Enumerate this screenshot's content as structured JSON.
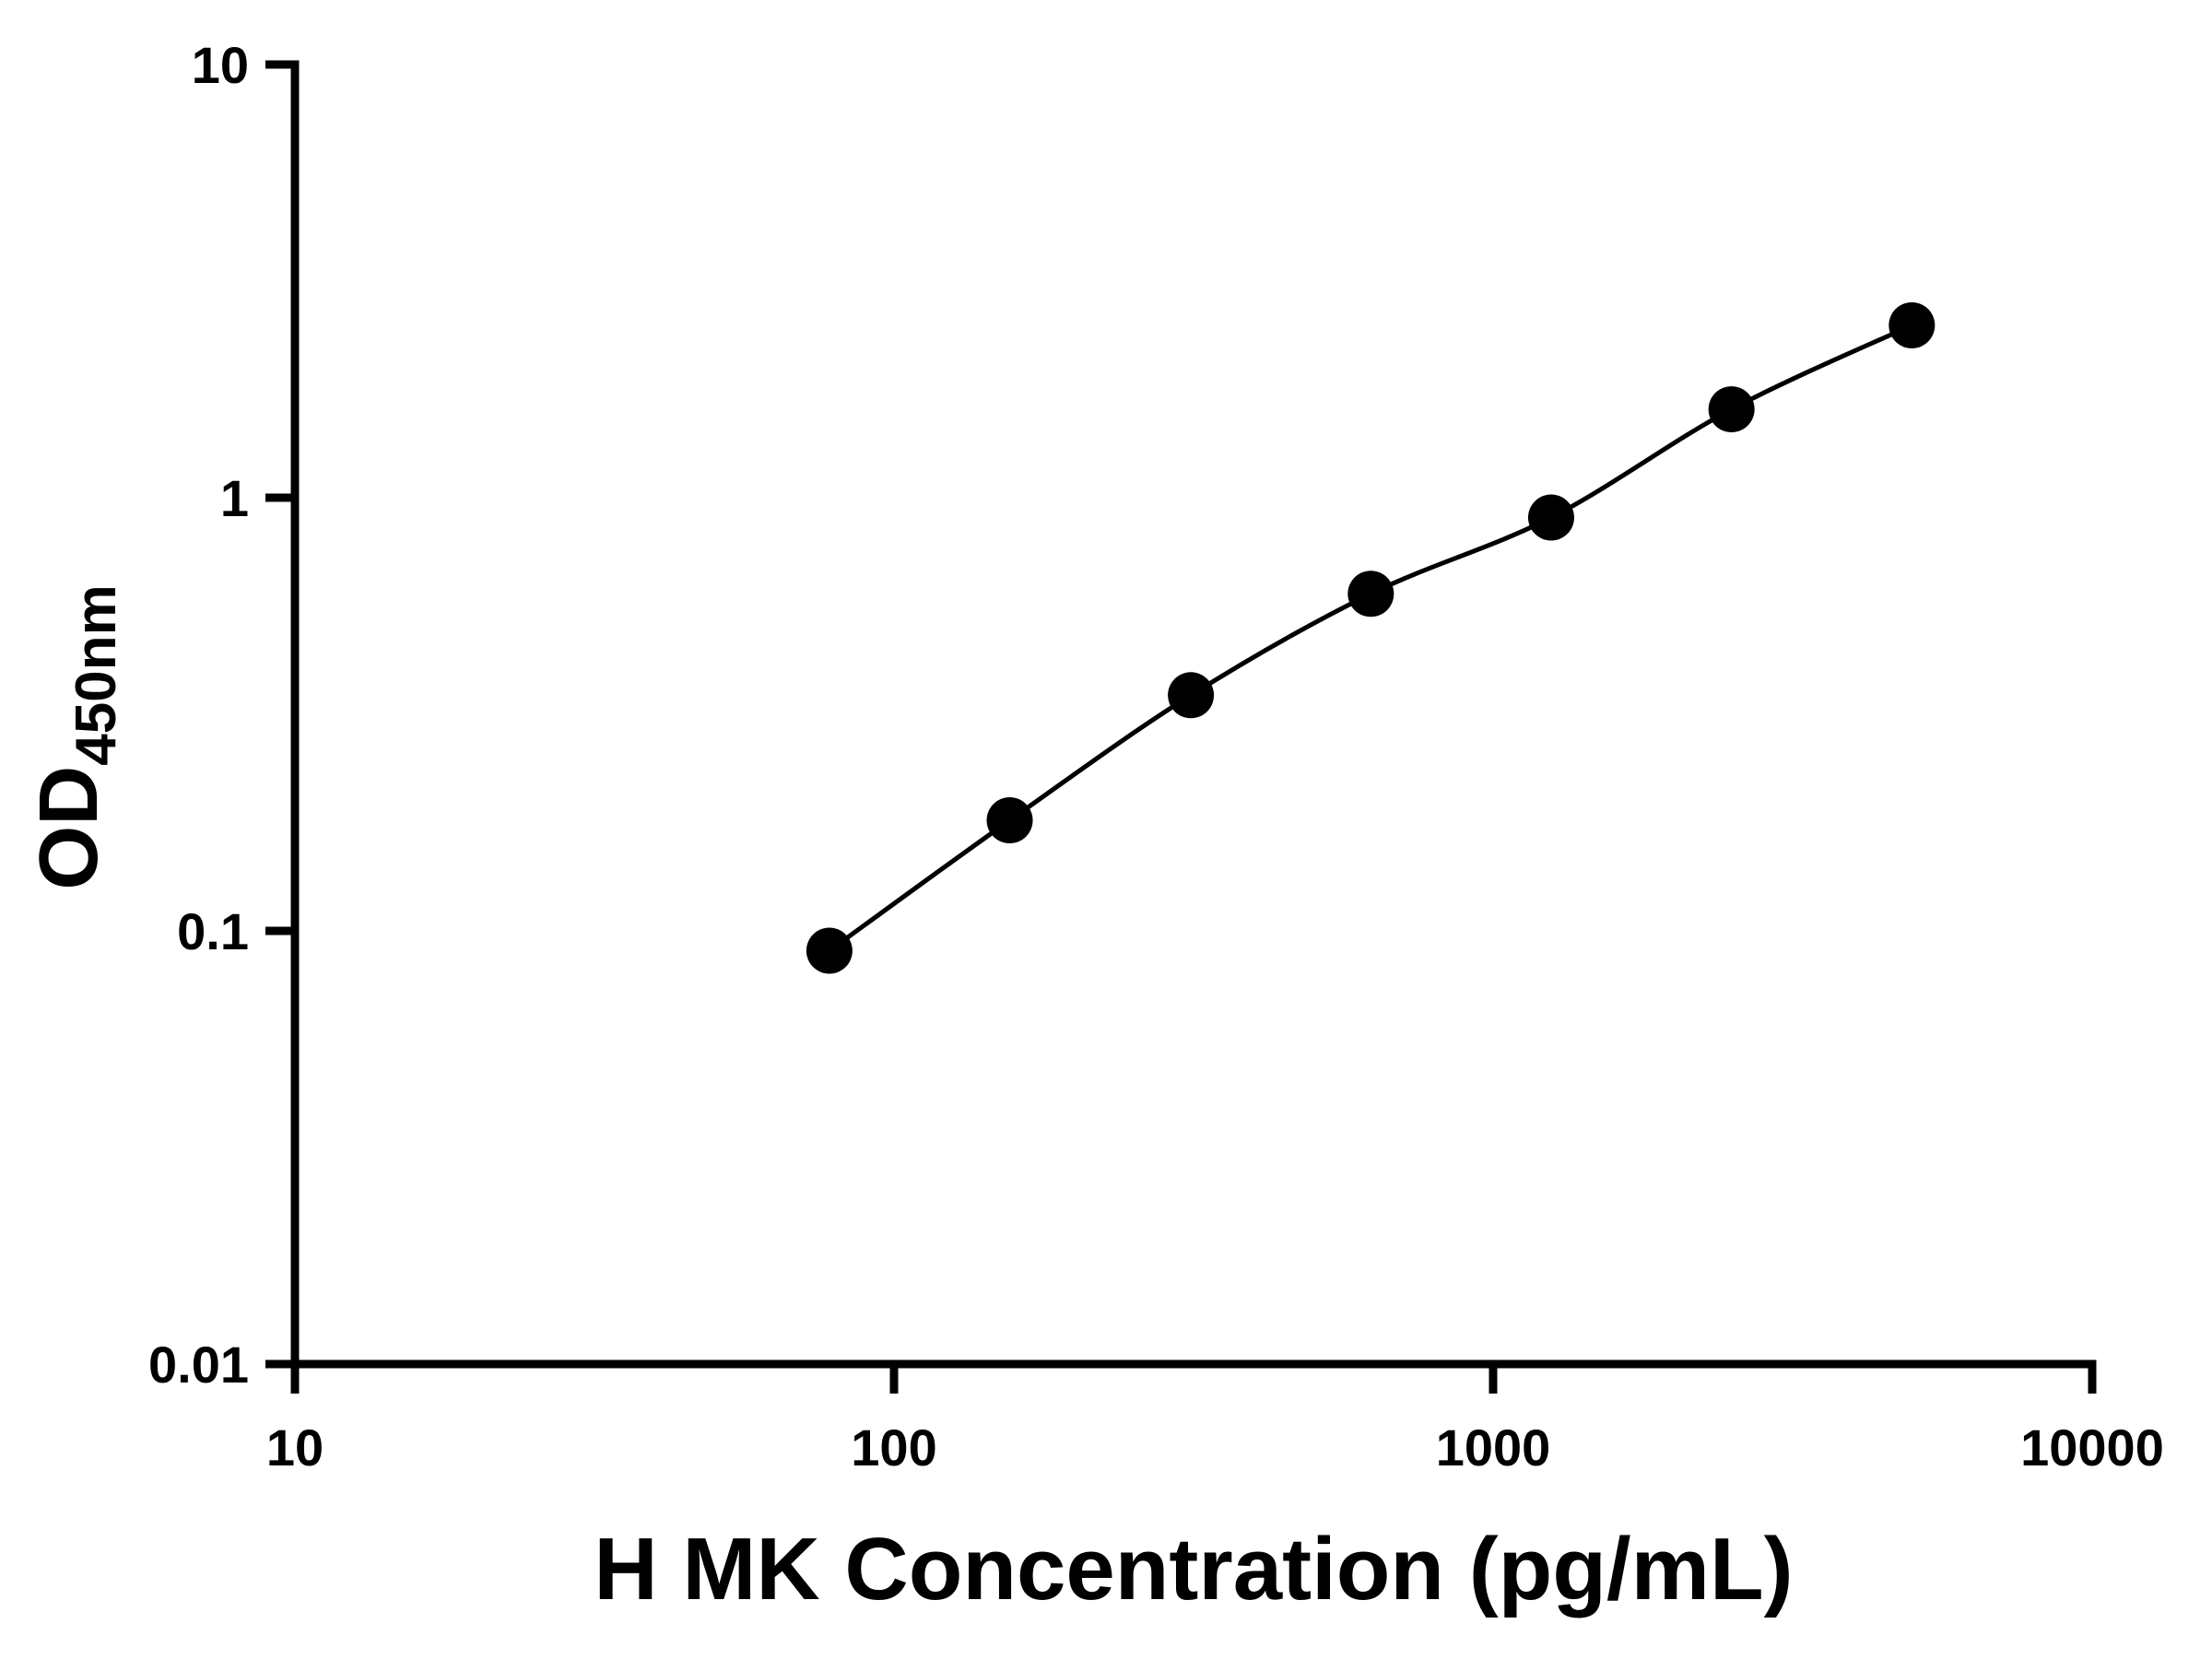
{
  "chart_data": {
    "type": "scatter",
    "title": "",
    "xlabel": "H MK Concentration (pg/mL)",
    "ylabel_main": "OD",
    "ylabel_sub": "450nm",
    "x_scale": "log",
    "y_scale": "log",
    "xlim": [
      10,
      10000
    ],
    "ylim": [
      0.01,
      10
    ],
    "grid": false,
    "legend": "none",
    "marker_color": "#000000",
    "line_color": "#000000",
    "background_color": "#ffffff",
    "x": [
      78,
      156,
      313,
      625,
      1250,
      2500,
      5000
    ],
    "y": [
      0.09,
      0.18,
      0.35,
      0.6,
      0.9,
      1.6,
      2.5
    ],
    "x_ticks": [
      {
        "v": 10,
        "label": "10"
      },
      {
        "v": 100,
        "label": "100"
      },
      {
        "v": 1000,
        "label": "1000"
      },
      {
        "v": 10000,
        "label": "10000"
      }
    ],
    "y_ticks": [
      {
        "v": 0.01,
        "label": "0.01"
      },
      {
        "v": 0.1,
        "label": "0.1"
      },
      {
        "v": 1,
        "label": "1"
      },
      {
        "v": 10,
        "label": "10"
      }
    ]
  }
}
